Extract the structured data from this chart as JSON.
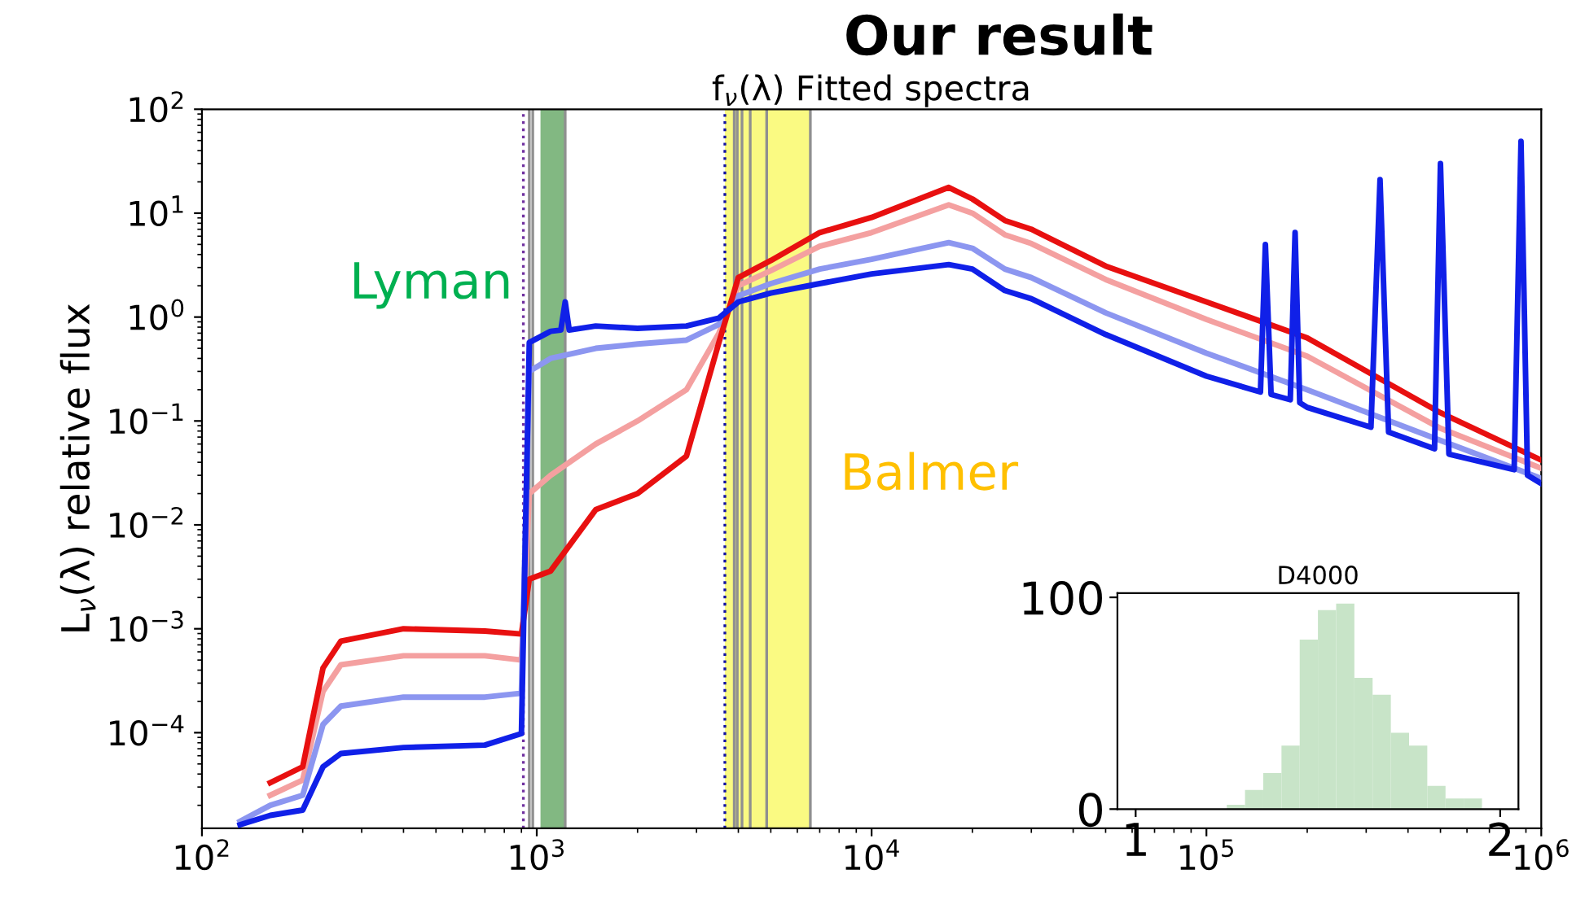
{
  "chart_data": [
    {
      "type": "line",
      "title": "Our result",
      "subtitle": "f$_{ν}$(λ) Fitted spectra",
      "ylabel": "L$_{ν}$(λ) relative flux",
      "log": "xy",
      "xlim": [
        100,
        1000000
      ],
      "ylim": [
        1.2e-05,
        100
      ],
      "xticks": [
        {
          "value": 100,
          "label": "10$^{2}$"
        },
        {
          "value": 1000,
          "label": "10$^{3}$"
        },
        {
          "value": 10000,
          "label": "10$^{4}$"
        },
        {
          "value": 100000,
          "label": "10$^{5}$"
        },
        {
          "value": 1000000,
          "label": "10$^{6}$"
        }
      ],
      "yticks": [
        {
          "value": 0.0001,
          "label": "10$^{−4}$"
        },
        {
          "value": 0.001,
          "label": "10$^{−3}$"
        },
        {
          "value": 0.01,
          "label": "10$^{−2}$"
        },
        {
          "value": 0.1,
          "label": "10$^{−1}$"
        },
        {
          "value": 1,
          "label": "10$^{0}$"
        },
        {
          "value": 10,
          "label": "10$^{1}$"
        },
        {
          "value": 100,
          "label": "10$^{2}$"
        }
      ],
      "grid": false,
      "marker": "none",
      "line_style": "solid",
      "bands": [
        {
          "axis": "x",
          "from": 1026,
          "to": 1216,
          "label": "Lyman",
          "color": "#82b882"
        },
        {
          "axis": "x",
          "from": 3646,
          "to": 6563,
          "label": "Balmer",
          "color": "#fafa82"
        }
      ],
      "ref_lines": [
        {
          "axis": "x",
          "value": 912,
          "color": "#7030a0",
          "line_style": "dotted"
        },
        {
          "axis": "x",
          "value": 950,
          "color": "#909090",
          "line_style": "solid"
        },
        {
          "axis": "x",
          "value": 973,
          "color": "#909090",
          "line_style": "solid"
        },
        {
          "axis": "x",
          "value": 1216,
          "color": "#909090",
          "line_style": "solid"
        },
        {
          "axis": "x",
          "value": 3646,
          "color": "#1010a0",
          "line_style": "dotted"
        },
        {
          "axis": "x",
          "value": 3889,
          "color": "#909090",
          "line_style": "solid"
        },
        {
          "axis": "x",
          "value": 3970,
          "color": "#909090",
          "line_style": "solid"
        },
        {
          "axis": "x",
          "value": 4102,
          "color": "#909090",
          "line_style": "solid"
        },
        {
          "axis": "x",
          "value": 4340,
          "color": "#909090",
          "line_style": "solid"
        },
        {
          "axis": "x",
          "value": 4861,
          "color": "#909090",
          "line_style": "solid"
        },
        {
          "axis": "x",
          "value": 6563,
          "color": "#909090",
          "line_style": "solid"
        }
      ],
      "series": [
        {
          "color": "#f4a0a0",
          "x": [
            160,
            200,
            230,
            260,
            400,
            700,
            900,
            950,
            1100,
            1500,
            2000,
            2800,
            3500,
            4000,
            5000,
            7000,
            10000,
            17000,
            20000,
            25000,
            30000,
            50000,
            100000,
            200000,
            500000,
            1000000
          ],
          "values": [
            2.5e-05,
            3.5e-05,
            0.00025,
            0.00045,
            0.00055,
            0.00055,
            0.0005,
            0.02,
            0.03,
            0.06,
            0.1,
            0.2,
            0.7,
            2.0,
            2.8,
            4.8,
            6.5,
            12,
            10,
            6.2,
            5.1,
            2.3,
            0.95,
            0.42,
            0.085,
            0.035
          ]
        },
        {
          "color": "#8c96f0",
          "x": [
            130,
            160,
            200,
            230,
            260,
            400,
            700,
            900,
            950,
            1100,
            1500,
            2000,
            2800,
            3500,
            4000,
            5000,
            7000,
            10000,
            17000,
            20000,
            25000,
            30000,
            50000,
            100000,
            200000,
            500000,
            1000000
          ],
          "values": [
            1.4e-05,
            2e-05,
            2.5e-05,
            0.00012,
            0.00018,
            0.00022,
            0.00022,
            0.00024,
            0.3,
            0.4,
            0.5,
            0.55,
            0.6,
            0.85,
            1.6,
            2.1,
            2.9,
            3.6,
            5.2,
            4.6,
            2.9,
            2.4,
            1.1,
            0.45,
            0.2,
            0.065,
            0.028
          ]
        },
        {
          "color": "#e81010",
          "x": [
            160,
            200,
            230,
            260,
            400,
            700,
            900,
            950,
            1100,
            1500,
            2000,
            2800,
            3500,
            4000,
            5000,
            7000,
            10000,
            17000,
            20000,
            25000,
            30000,
            50000,
            100000,
            200000,
            500000,
            1000000
          ],
          "values": [
            3.3e-05,
            4.7e-05,
            0.00042,
            0.00076,
            0.001,
            0.00095,
            0.00089,
            0.003,
            0.0036,
            0.014,
            0.02,
            0.046,
            0.57,
            2.4,
            3.5,
            6.5,
            9.1,
            17.7,
            13.7,
            8.5,
            7.0,
            3.1,
            1.4,
            0.63,
            0.12,
            0.042
          ]
        },
        {
          "color": "#1020e8",
          "x": [
            130,
            160,
            200,
            230,
            260,
            400,
            700,
            900,
            950,
            1100,
            1180,
            1216,
            1250,
            1500,
            2000,
            2800,
            3500,
            4000,
            5000,
            7000,
            10000,
            17000,
            20000,
            25000,
            30000,
            50000,
            100000,
            145000,
            150000,
            156000,
            178000,
            184000,
            190000,
            200000,
            310000,
            330000,
            350000,
            480000,
            500000,
            530000,
            830000,
            870000,
            910000,
            1000000
          ],
          "values": [
            1.3e-05,
            1.6e-05,
            1.8e-05,
            4.7e-05,
            6.3e-05,
            7.2e-05,
            7.6e-05,
            9.8e-05,
            0.57,
            0.73,
            0.75,
            1.4,
            0.75,
            0.82,
            0.78,
            0.82,
            0.98,
            1.4,
            1.7,
            2.1,
            2.6,
            3.2,
            2.9,
            1.8,
            1.5,
            0.68,
            0.27,
            0.19,
            5.0,
            0.18,
            0.16,
            6.5,
            0.15,
            0.135,
            0.087,
            21,
            0.078,
            0.054,
            30,
            0.048,
            0.034,
            49,
            0.03,
            0.025
          ]
        }
      ]
    },
    {
      "type": "histogram",
      "title": "D4000",
      "color": "#c8e4c8",
      "bins": [
        1.25,
        1.3,
        1.35,
        1.4,
        1.45,
        1.5,
        1.55,
        1.6,
        1.65,
        1.7,
        1.75,
        1.8,
        1.85,
        1.9,
        1.95,
        2.0
      ],
      "values": [
        2,
        9,
        17,
        30,
        80,
        94,
        97,
        62,
        54,
        36,
        30,
        11,
        5,
        5,
        null
      ],
      "xlim": [
        0.95,
        2.05
      ],
      "ylim": [
        0,
        102
      ],
      "xticks": [
        1,
        2
      ],
      "yticks": [
        0,
        100
      ]
    }
  ]
}
